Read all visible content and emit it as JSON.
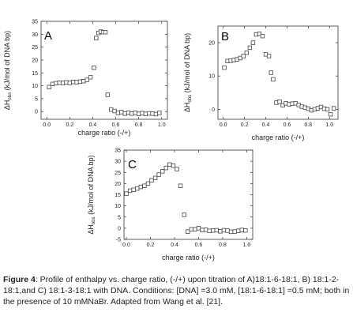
{
  "chart_data": [
    {
      "type": "scatter",
      "panel_label": "A",
      "xlabel": "charge ratio (-/+)",
      "ylabel": "ΔH",
      "ylabel_sub": "obs",
      "ylabel_rest": " (kJ/mol of DNA bp)",
      "xlim": [
        -0.05,
        1.05
      ],
      "ylim": [
        -3,
        35
      ],
      "xticks": [
        "0.0",
        "0.2",
        "0.4",
        "0.6",
        "0.8",
        "1.0"
      ],
      "yticks": [
        "0",
        "5",
        "10",
        "15",
        "20",
        "25",
        "30",
        "35"
      ],
      "x": [
        0.02,
        0.05,
        0.08,
        0.11,
        0.14,
        0.17,
        0.2,
        0.23,
        0.26,
        0.29,
        0.32,
        0.35,
        0.38,
        0.41,
        0.43,
        0.45,
        0.47,
        0.49,
        0.51,
        0.53,
        0.56,
        0.59,
        0.62,
        0.65,
        0.68,
        0.71,
        0.74,
        0.77,
        0.8,
        0.83,
        0.86,
        0.89,
        0.92,
        0.95,
        0.98
      ],
      "y": [
        9.5,
        10.7,
        11.0,
        11.2,
        11.1,
        11.3,
        11.1,
        11.5,
        11.4,
        11.6,
        11.8,
        12.3,
        13.3,
        17.0,
        28.5,
        30.5,
        31.0,
        30.8,
        30.8,
        6.5,
        0.8,
        0.2,
        -0.5,
        -0.2,
        -0.8,
        -0.4,
        -0.8,
        -0.5,
        -0.9,
        -0.6,
        -0.9,
        -0.7,
        -0.8,
        -1.0,
        -0.5
      ]
    },
    {
      "type": "scatter",
      "panel_label": "B",
      "xlabel": "charge ratio (-/+)",
      "ylabel": "ΔH",
      "ylabel_sub": "obs",
      "ylabel_rest": " (kJ/mol of DNA bp)",
      "xlim": [
        -0.05,
        1.08
      ],
      "ylim": [
        -3,
        25
      ],
      "xticks": [
        "0.0",
        "0.2",
        "0.4",
        "0.6",
        "0.8",
        "1.0"
      ],
      "yticks": [
        "0",
        "10",
        "20"
      ],
      "x": [
        0.01,
        0.04,
        0.07,
        0.1,
        0.13,
        0.16,
        0.19,
        0.22,
        0.25,
        0.28,
        0.31,
        0.34,
        0.37,
        0.4,
        0.43,
        0.45,
        0.47,
        0.5,
        0.53,
        0.56,
        0.59,
        0.62,
        0.65,
        0.68,
        0.71,
        0.74,
        0.77,
        0.8,
        0.83,
        0.86,
        0.89,
        0.92,
        0.95,
        0.98,
        1.01,
        1.04
      ],
      "y": [
        12.5,
        14.5,
        14.6,
        14.8,
        15.0,
        15.4,
        16.0,
        17.0,
        18.5,
        20.0,
        22.5,
        22.7,
        22.0,
        16.5,
        16.0,
        11.0,
        9.0,
        2.0,
        2.3,
        1.2,
        1.8,
        1.5,
        1.7,
        1.8,
        1.3,
        0.8,
        0.5,
        0.2,
        -0.3,
        0.0,
        0.3,
        0.7,
        0.2,
        0.0,
        -1.5,
        0.3
      ]
    },
    {
      "type": "scatter",
      "panel_label": "C",
      "xlabel": "charge ratio (-/+)",
      "ylabel": "ΔH",
      "ylabel_sub": "obs",
      "ylabel_rest": " (kJ/mol of DNA bp)",
      "xlim": [
        -0.02,
        1.05
      ],
      "ylim": [
        -5,
        35
      ],
      "xticks": [
        "0.0",
        "0.2",
        "0.4",
        "0.6",
        "0.8",
        "1.0"
      ],
      "yticks": [
        "-5",
        "0",
        "5",
        "10",
        "15",
        "20",
        "25",
        "30",
        "35"
      ],
      "x": [
        0.0,
        0.03,
        0.06,
        0.09,
        0.12,
        0.15,
        0.18,
        0.21,
        0.24,
        0.27,
        0.3,
        0.33,
        0.36,
        0.39,
        0.42,
        0.45,
        0.48,
        0.51,
        0.54,
        0.57,
        0.6,
        0.63,
        0.66,
        0.69,
        0.72,
        0.75,
        0.78,
        0.81,
        0.84,
        0.87,
        0.9,
        0.93,
        0.96,
        0.99
      ],
      "y": [
        15.5,
        16.8,
        17.2,
        17.8,
        18.5,
        19.0,
        20.0,
        21.5,
        22.5,
        24.0,
        25.5,
        27.0,
        28.5,
        28.0,
        26.5,
        19.0,
        6.0,
        -1.5,
        -0.5,
        -0.5,
        0.0,
        -0.8,
        -0.7,
        -1.2,
        -1.0,
        -0.9,
        -1.4,
        -0.9,
        -1.1,
        -1.6,
        -1.5,
        -1.2,
        -0.8,
        -1.0
      ]
    }
  ],
  "caption": {
    "bold": "Figure 4",
    "text": ": Profile of enthalpy vs. charge ratio, (-/+) upon titration of A)18:1-6-18:1, B) 18:1-2-18:1,and C) 18:1-3-18:1 with DNA. Conditions: [DNA] =3.0 mM, [18:1-6-18:1] =0.5 mM; both in the presence of 10 mMNaBr. Adapted from Wang et al. [21]."
  }
}
